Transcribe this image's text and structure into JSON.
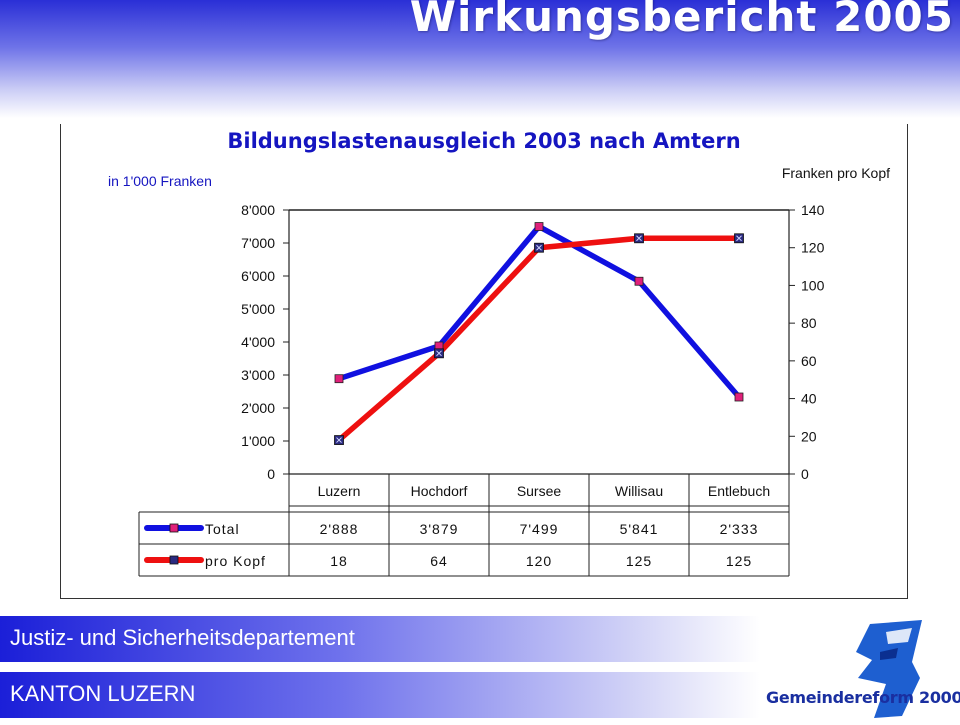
{
  "slide": {
    "title": "Wirkungsbericht 2005",
    "department": "Justiz-  und Sicherheitsdepartement",
    "canton": "KANTON LUZERN",
    "logo_text": "Gemeindereform 2000+"
  },
  "colors": {
    "total": "#1010e0",
    "pro_kopf": "#ee1010",
    "header": "#2a2fd6"
  },
  "chart_data": {
    "type": "line",
    "title": "Bildungslastenausgleich 2003 nach Amtern",
    "ylabel_left": "in 1'000 Franken",
    "ylabel_right": "Franken pro Kopf",
    "categories": [
      "Luzern",
      "Hochdorf",
      "Sursee",
      "Willisau",
      "Entlebuch"
    ],
    "ylim_left": [
      0,
      8000
    ],
    "yticks_left": [
      "0",
      "1'000",
      "2'000",
      "3'000",
      "4'000",
      "5'000",
      "6'000",
      "7'000",
      "8'000"
    ],
    "ylim_right": [
      0,
      140
    ],
    "yticks_right": [
      "0",
      "20",
      "40",
      "60",
      "80",
      "100",
      "120",
      "140"
    ],
    "grid": true,
    "legend": "data-table",
    "series": [
      {
        "name": "Total",
        "axis": "left",
        "values": [
          2888,
          3879,
          7499,
          5841,
          2333
        ],
        "labels": [
          "2'888",
          "3'879",
          "7'499",
          "5'841",
          "2'333"
        ]
      },
      {
        "name": "pro Kopf",
        "axis": "right",
        "values": [
          18,
          64,
          120,
          125,
          125
        ],
        "labels": [
          "18",
          "64",
          "120",
          "125",
          "125"
        ]
      }
    ]
  }
}
